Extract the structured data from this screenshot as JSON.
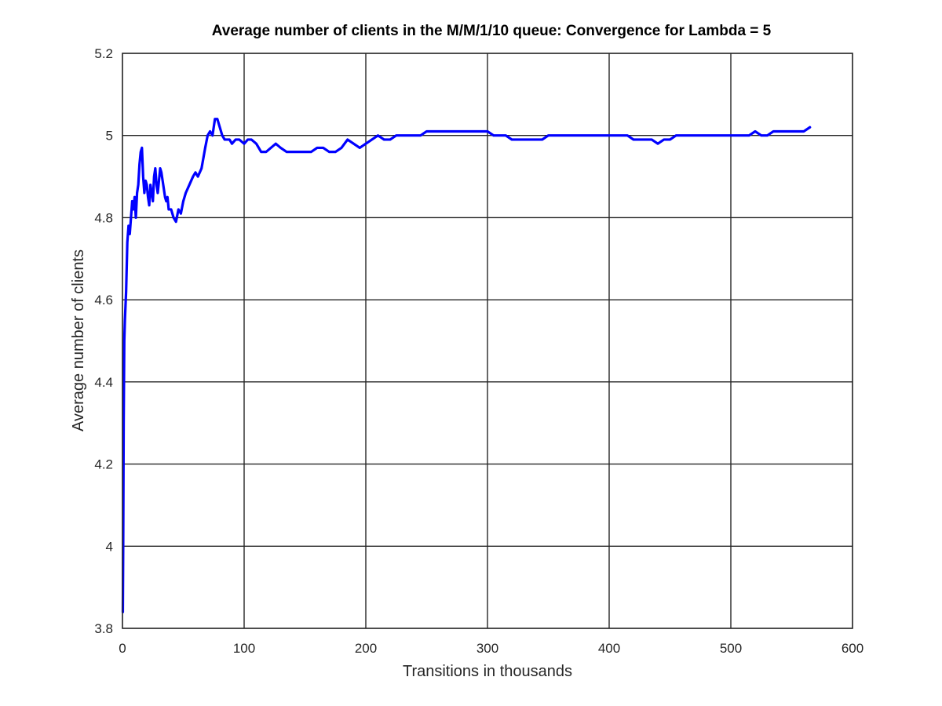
{
  "chart_data": {
    "type": "line",
    "title": "Average number of clients in the M/M/1/10 queue: Convergence for Lambda = 5",
    "xlabel": "Transitions in thousands",
    "ylabel": "Average number of clients",
    "xlim": [
      0,
      600
    ],
    "ylim": [
      3.8,
      5.2
    ],
    "xticks": [
      0,
      100,
      200,
      300,
      400,
      500,
      600
    ],
    "xtick_labels": [
      "0",
      "100",
      "200",
      "300",
      "400",
      "500",
      "600"
    ],
    "yticks": [
      3.8,
      4.0,
      4.2,
      4.4,
      4.6,
      4.8,
      5.0,
      5.2
    ],
    "ytick_labels": [
      "3.8",
      "4",
      "4.2",
      "4.4",
      "4.6",
      "4.8",
      "5",
      "5.2"
    ],
    "grid": true,
    "series": [
      {
        "color": "#0000ff",
        "x": [
          0.3,
          0.6,
          1,
          1.5,
          2,
          3,
          4,
          5,
          6,
          7,
          8,
          9,
          10,
          11,
          12,
          13,
          14,
          15,
          16,
          17,
          18,
          19,
          20,
          21,
          22,
          23,
          24,
          25,
          26,
          27,
          28,
          29,
          30,
          31,
          32,
          33,
          34,
          35,
          36,
          37,
          38,
          40,
          42,
          44,
          46,
          48,
          50,
          52,
          55,
          58,
          60,
          62,
          65,
          68,
          70,
          72,
          74,
          76,
          78,
          80,
          82,
          84,
          86,
          88,
          90,
          93,
          96,
          100,
          103,
          106,
          110,
          114,
          118,
          122,
          126,
          130,
          135,
          140,
          145,
          150,
          155,
          160,
          165,
          170,
          175,
          180,
          185,
          190,
          195,
          200,
          205,
          210,
          215,
          220,
          225,
          230,
          235,
          240,
          245,
          250,
          255,
          260,
          265,
          270,
          275,
          280,
          285,
          290,
          295,
          300,
          305,
          310,
          315,
          320,
          325,
          330,
          335,
          340,
          345,
          350,
          355,
          360,
          365,
          370,
          375,
          380,
          385,
          390,
          395,
          400,
          405,
          410,
          415,
          420,
          425,
          430,
          435,
          440,
          445,
          450,
          455,
          460,
          465,
          470,
          475,
          480,
          485,
          490,
          495,
          500,
          505,
          510,
          515,
          520,
          525,
          530,
          535,
          540,
          545,
          550,
          555,
          560,
          565
        ],
        "y": [
          3.84,
          4.0,
          4.3,
          4.5,
          4.55,
          4.62,
          4.74,
          4.78,
          4.76,
          4.8,
          4.84,
          4.82,
          4.85,
          4.8,
          4.86,
          4.88,
          4.93,
          4.96,
          4.97,
          4.9,
          4.86,
          4.89,
          4.88,
          4.85,
          4.83,
          4.88,
          4.86,
          4.84,
          4.9,
          4.92,
          4.88,
          4.86,
          4.89,
          4.92,
          4.91,
          4.89,
          4.87,
          4.85,
          4.84,
          4.85,
          4.82,
          4.82,
          4.8,
          4.79,
          4.82,
          4.81,
          4.84,
          4.86,
          4.88,
          4.9,
          4.91,
          4.9,
          4.92,
          4.97,
          5.0,
          5.01,
          5.0,
          5.04,
          5.04,
          5.02,
          5.0,
          4.99,
          4.99,
          4.99,
          4.98,
          4.99,
          4.99,
          4.98,
          4.99,
          4.99,
          4.98,
          4.96,
          4.96,
          4.97,
          4.98,
          4.97,
          4.96,
          4.96,
          4.96,
          4.96,
          4.96,
          4.97,
          4.97,
          4.96,
          4.96,
          4.97,
          4.99,
          4.98,
          4.97,
          4.98,
          4.99,
          5.0,
          4.99,
          4.99,
          5.0,
          5.0,
          5.0,
          5.0,
          5.0,
          5.01,
          5.01,
          5.01,
          5.01,
          5.01,
          5.01,
          5.01,
          5.01,
          5.01,
          5.01,
          5.01,
          5.0,
          5.0,
          5.0,
          4.99,
          4.99,
          4.99,
          4.99,
          4.99,
          4.99,
          5.0,
          5.0,
          5.0,
          5.0,
          5.0,
          5.0,
          5.0,
          5.0,
          5.0,
          5.0,
          5.0,
          5.0,
          5.0,
          5.0,
          4.99,
          4.99,
          4.99,
          4.99,
          4.98,
          4.99,
          4.99,
          5.0,
          5.0,
          5.0,
          5.0,
          5.0,
          5.0,
          5.0,
          5.0,
          5.0,
          5.0,
          5.0,
          5.0,
          5.0,
          5.01,
          5.0,
          5.0,
          5.01,
          5.01,
          5.01,
          5.01,
          5.01,
          5.01,
          5.02
        ]
      }
    ]
  }
}
